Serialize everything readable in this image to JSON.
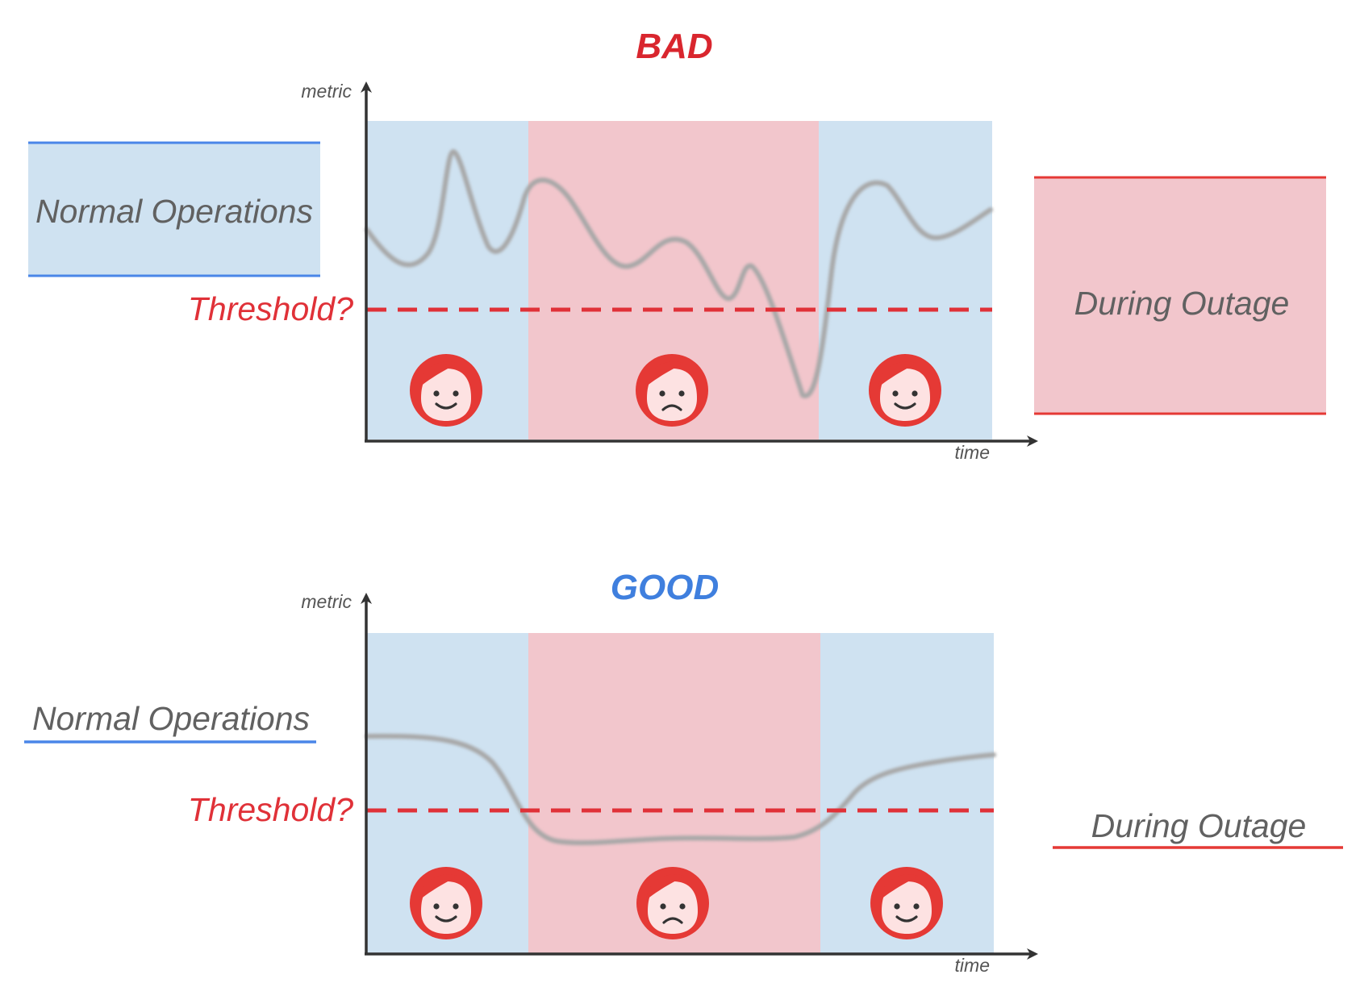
{
  "colors": {
    "normal_fill": "#cfe2f1",
    "outage_fill": "#f2c6cc",
    "normal_line": "#4a86e8",
    "outage_line": "#e53935",
    "threshold": "#e03138",
    "metric_line": "#a7a7a7",
    "axis": "#333333",
    "face_red": "#e53935",
    "face_skin": "#fde2e2",
    "bad_title": "#d9262e",
    "good_title": "#3f7fde",
    "label_text": "#616161"
  },
  "panels": [
    {
      "id": "bad",
      "title": "BAD",
      "y_axis_label": "metric",
      "x_axis_label": "time",
      "threshold_label": "Threshold?",
      "normal_label": "Normal Operations",
      "outage_label": "During Outage",
      "faces": [
        "happy-face-icon",
        "sad-face-icon",
        "happy-face-icon"
      ]
    },
    {
      "id": "good",
      "title": "GOOD",
      "y_axis_label": "metric",
      "x_axis_label": "time",
      "threshold_label": "Threshold?",
      "normal_label": "Normal Operations",
      "outage_label": "During Outage",
      "faces": [
        "happy-face-icon",
        "sad-face-icon",
        "happy-face-icon"
      ]
    }
  ]
}
